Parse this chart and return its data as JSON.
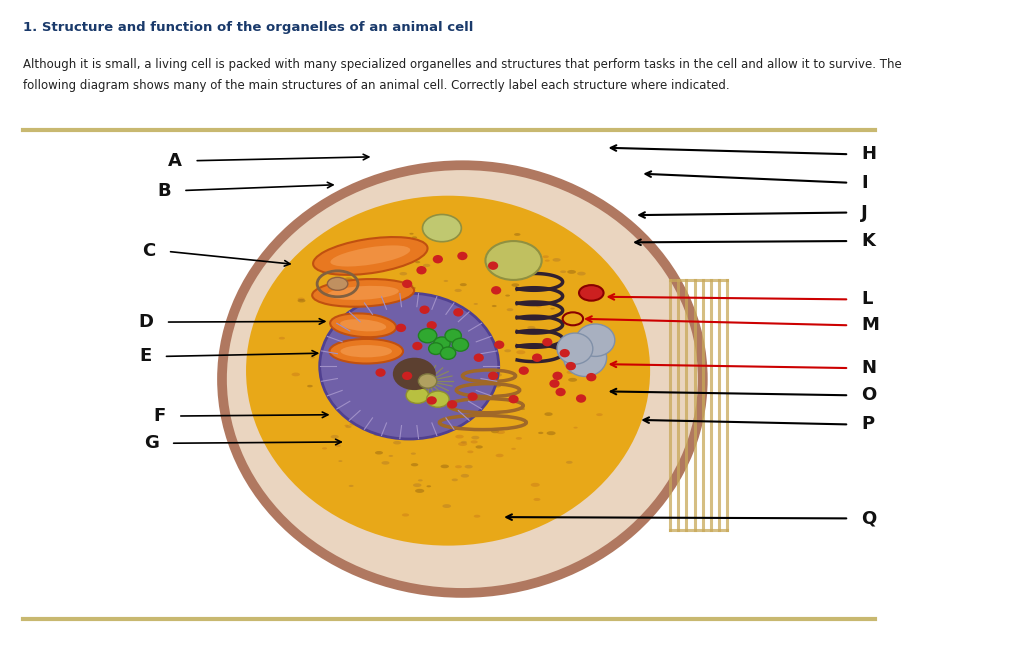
{
  "title": "1. Structure and function of the organelles of an animal cell",
  "title_color": "#1a3a6b",
  "body_text_line1": "Although it is small, a living cell is packed with many specialized organelles and structures that perform tasks in the cell and allow it to survive. The",
  "body_text_line2": "following diagram shows many of the main structures of an animal cell. Correctly label each structure where indicated.",
  "body_text_color": "#222222",
  "bg_color": "#ffffff",
  "divider_color": "#c8b870",
  "left_labels": [
    "A",
    "B",
    "C",
    "D",
    "E",
    "F",
    "G"
  ],
  "right_labels": [
    "H",
    "I",
    "J",
    "K",
    "L",
    "M",
    "N",
    "O",
    "P",
    "Q"
  ],
  "label_fontsize": 13,
  "label_fontweight": "bold",
  "label_color": "#111111",
  "red_line_labels": [
    "L",
    "M",
    "N"
  ]
}
